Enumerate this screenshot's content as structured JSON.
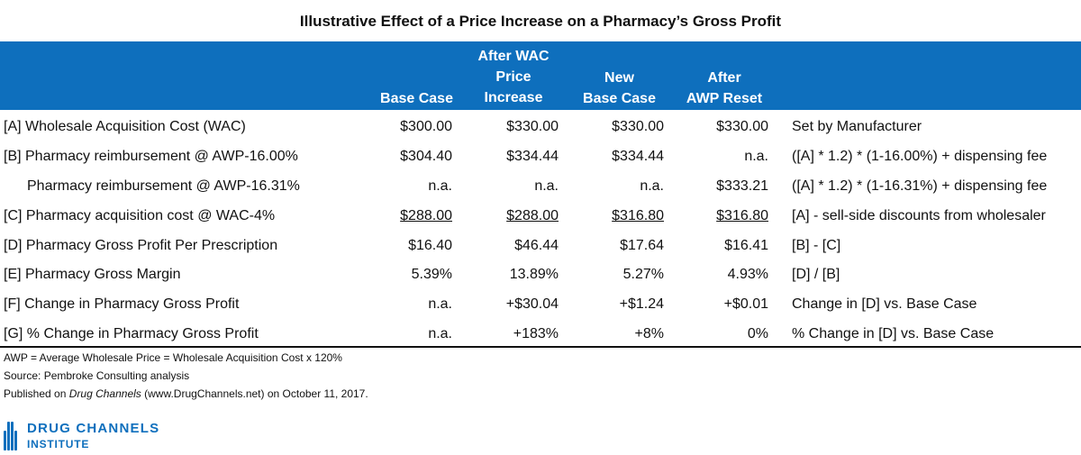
{
  "title": "Illustrative Effect of a Price Increase on a Pharmacy’s Gross Profit",
  "headers": {
    "base_case": [
      "Base Case"
    ],
    "after_wac": [
      "After WAC",
      "Price",
      "Increase"
    ],
    "new_base": [
      "New",
      "Base Case"
    ],
    "after_awp": [
      "After",
      "AWP Reset"
    ]
  },
  "rows": [
    {
      "label": "[A] Wholesale Acquisition Cost (WAC)",
      "c1": "$300.00",
      "c2": "$330.00",
      "c3": "$330.00",
      "c4": "$330.00",
      "formula": "Set by Manufacturer"
    },
    {
      "label": "[B] Pharmacy reimbursement  @ AWP-16.00%",
      "c1": "$304.40",
      "c2": "$334.44",
      "c3": "$334.44",
      "c4": "n.a.",
      "formula": "([A] * 1.2) * (1-16.00%) + dispensing fee"
    },
    {
      "label": "Pharmacy reimbursement  @ AWP-16.31%",
      "c1": "n.a.",
      "c2": "n.a.",
      "c3": "n.a.",
      "c4": "$333.21",
      "formula": "([A] * 1.2) * (1-16.31%) + dispensing fee"
    },
    {
      "label": "[C] Pharmacy acquisition cost @ WAC-4%",
      "c1": "$288.00",
      "c2": "$288.00",
      "c3": "$316.80",
      "c4": "$316.80",
      "formula": "[A] - sell-side discounts from wholesaler"
    },
    {
      "label": "[D] Pharmacy Gross Profit Per Prescription",
      "c1": "$16.40",
      "c2": "$46.44",
      "c3": "$17.64",
      "c4": "$16.41",
      "formula": "[B] - [C]"
    },
    {
      "label": "[E] Pharmacy Gross Margin",
      "c1": "5.39%",
      "c2": "13.89%",
      "c3": "5.27%",
      "c4": "4.93%",
      "formula": "[D] / [B]"
    },
    {
      "label": "[F] Change in Pharmacy Gross Profit",
      "c1": "n.a.",
      "c2": "+$30.04",
      "c3": "+$1.24",
      "c4": "+$0.01",
      "formula": "Change in [D] vs. Base Case"
    },
    {
      "label": "[G] % Change in Pharmacy Gross Profit",
      "c1": "n.a.",
      "c2": "+183%",
      "c3": "+8%",
      "c4": "0%",
      "formula": "% Change in [D] vs. Base Case"
    }
  ],
  "notes": {
    "awp_def": "AWP = Average Wholesale Price = Wholesale Acquisition Cost x 120%",
    "source": "Source: Pembroke Consulting analysis",
    "published_prefix": "Published on ",
    "published_italic": "Drug Channels",
    "published_suffix": " (www.DrugChannels.net) on October 11, 2017."
  },
  "logo": {
    "line1": "DRUG CHANNELS",
    "line2": "INSTITUTE",
    "color": "#0e6fbd"
  },
  "colors": {
    "header_bg": "#0e6fbd",
    "header_text": "#ffffff"
  }
}
